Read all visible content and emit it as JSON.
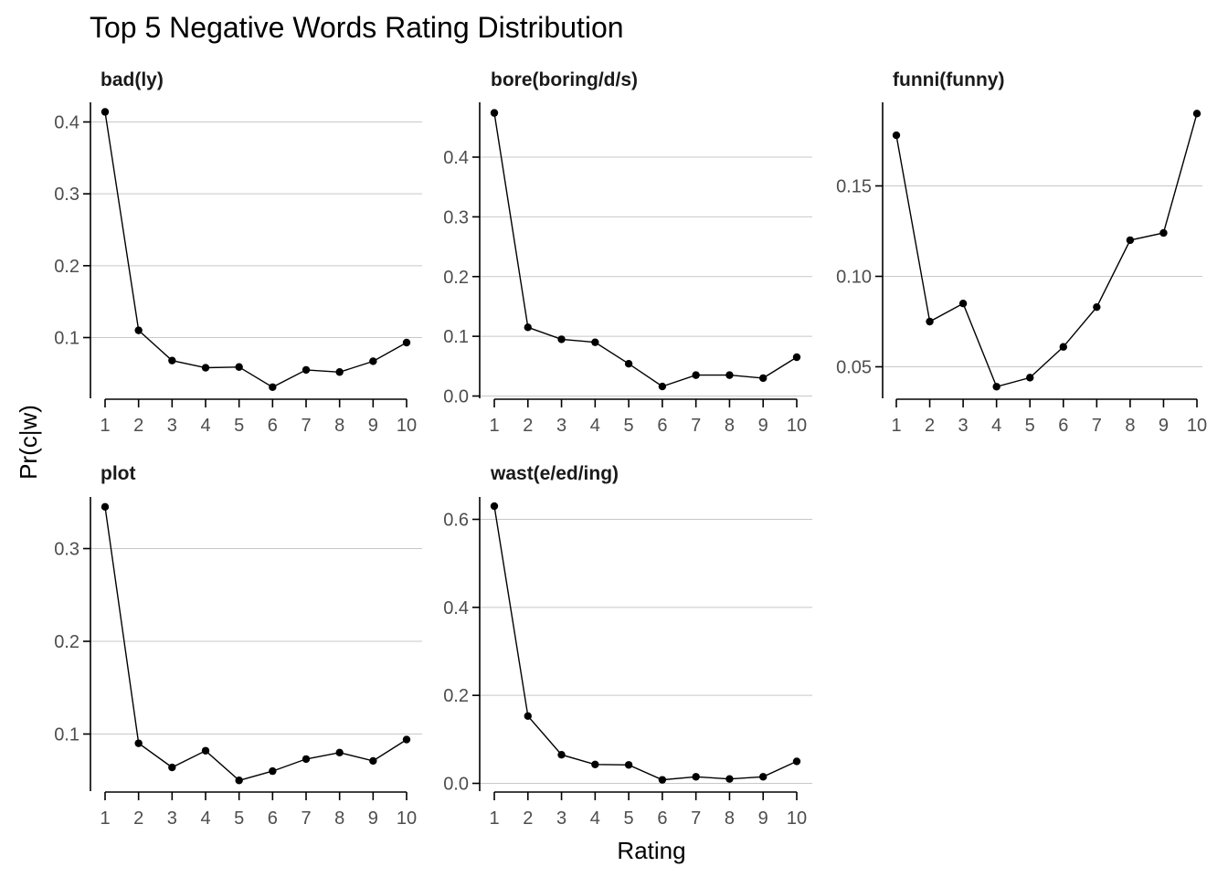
{
  "title": "Top 5 Negative Words Rating Distribution",
  "xlabel": "Rating",
  "ylabel": "Pr(c|w)",
  "colors": {
    "series": "#000000",
    "grid": "#c8c8c8",
    "tick_text": "#4d4d4d"
  },
  "chart_data": [
    {
      "type": "line",
      "title": "bad(ly)",
      "x": [
        1,
        2,
        3,
        4,
        5,
        6,
        7,
        8,
        9,
        10
      ],
      "values": [
        0.414,
        0.11,
        0.068,
        0.058,
        0.059,
        0.031,
        0.055,
        0.052,
        0.067,
        0.093
      ],
      "yticks": [
        0.1,
        0.2,
        0.3,
        0.4
      ],
      "ytick_labels": [
        "0.1",
        "0.2",
        "0.3",
        "0.4"
      ],
      "ylim": [
        0.01,
        0.44
      ],
      "grid": true
    },
    {
      "type": "line",
      "title": "bore(boring/d/s)",
      "x": [
        1,
        2,
        3,
        4,
        5,
        6,
        7,
        8,
        9,
        10
      ],
      "values": [
        0.474,
        0.115,
        0.095,
        0.09,
        0.054,
        0.016,
        0.035,
        0.035,
        0.03,
        0.065
      ],
      "yticks": [
        0.0,
        0.1,
        0.2,
        0.3,
        0.4
      ],
      "ytick_labels": [
        "0.0",
        "0.1",
        "0.2",
        "0.3",
        "0.4"
      ],
      "ylim": [
        -0.008,
        0.494
      ],
      "grid": true
    },
    {
      "type": "line",
      "title": "funni(funny)",
      "x": [
        1,
        2,
        3,
        4,
        5,
        6,
        7,
        8,
        9,
        10
      ],
      "values": [
        0.178,
        0.075,
        0.085,
        0.039,
        0.044,
        0.061,
        0.083,
        0.12,
        0.124,
        0.19
      ],
      "yticks": [
        0.05,
        0.1,
        0.15
      ],
      "ytick_labels": [
        "0.05",
        "0.10",
        "0.15"
      ],
      "ylim": [
        0.032,
        0.197
      ],
      "grid": true
    },
    {
      "type": "line",
      "title": "plot",
      "x": [
        1,
        2,
        3,
        4,
        5,
        6,
        7,
        8,
        9,
        10
      ],
      "values": [
        0.345,
        0.09,
        0.064,
        0.082,
        0.05,
        0.06,
        0.073,
        0.08,
        0.071,
        0.094
      ],
      "yticks": [
        0.1,
        0.2,
        0.3
      ],
      "ytick_labels": [
        "0.1",
        "0.2",
        "0.3"
      ],
      "ylim": [
        0.035,
        0.36
      ],
      "grid": true
    },
    {
      "type": "line",
      "title": "wast(e/ed/ing)",
      "x": [
        1,
        2,
        3,
        4,
        5,
        6,
        7,
        8,
        9,
        10
      ],
      "values": [
        0.63,
        0.153,
        0.065,
        0.043,
        0.042,
        0.008,
        0.015,
        0.01,
        0.015,
        0.05
      ],
      "yticks": [
        0.0,
        0.2,
        0.4,
        0.6
      ],
      "ytick_labels": [
        "0.0",
        "0.2",
        "0.4",
        "0.6"
      ],
      "ylim": [
        -0.01,
        0.65
      ],
      "grid": true
    }
  ]
}
